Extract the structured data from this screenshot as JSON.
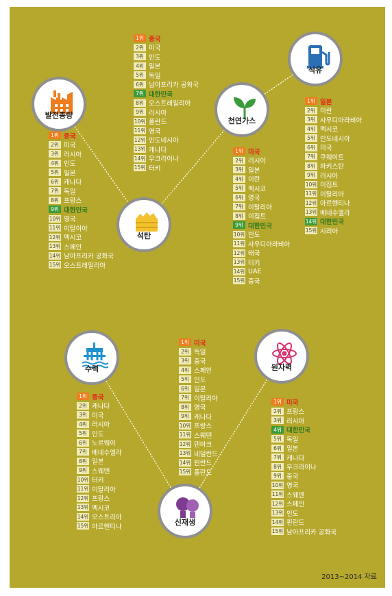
{
  "categories": [
    {
      "id": "power",
      "label": "발전총량",
      "icon": "factory-icon",
      "items": [
        "중국",
        "미국",
        "러시아",
        "인도",
        "일본",
        "캐나다",
        "독일",
        "프랑스",
        "대한민국",
        "영국",
        "이탈이아",
        "멕시코",
        "스페인",
        "남아프리카 공화국",
        "오스트레일리아"
      ]
    },
    {
      "id": "coal",
      "label": "석탄",
      "icon": "coal-cart-icon",
      "items": [
        "중국",
        "미국",
        "인도",
        "일본",
        "독일",
        "남아프리카 공화국",
        "대한민국",
        "오스트레일리아",
        "러시아",
        "폴란드",
        "영국",
        "인도네시아",
        "캐나다",
        "우크라이나",
        "터키"
      ]
    },
    {
      "id": "gas",
      "label": "천연가스",
      "icon": "sprout-icon",
      "items": [
        "미국",
        "러시아",
        "일본",
        "이란",
        "멕시코",
        "영국",
        "이탈리아",
        "이집트",
        "대한민국",
        "인도",
        "사우디아라비아",
        "태국",
        "터키",
        "UAE",
        "중국"
      ]
    },
    {
      "id": "oil",
      "label": "석유",
      "icon": "fuel-pump-icon",
      "items": [
        "일본",
        "이란",
        "사우디아라비아",
        "멕시코",
        "인도네시아",
        "미국",
        "쿠웨이트",
        "파키스탄",
        "러시아",
        "이집트",
        "이탈리아",
        "아르헨티나",
        "베네수엘라",
        "대한민국",
        "시리아"
      ]
    },
    {
      "id": "hydro",
      "label": "수력",
      "icon": "dam-icon",
      "items": [
        "중국",
        "캐나다",
        "미국",
        "러시아",
        "인도",
        "노르웨이",
        "베네수엘라",
        "일본",
        "스웨덴",
        "터키",
        "이탈리아",
        "프랑스",
        "멕시코",
        "오스트리아",
        "아르헨티나"
      ]
    },
    {
      "id": "renew",
      "label": "신재생",
      "icon": "lightbulb-icon",
      "items": [
        "미국",
        "독일",
        "중국",
        "스페인",
        "인도",
        "일본",
        "이탈리아",
        "영국",
        "캐나다",
        "프랑스",
        "스웨덴",
        "덴마크",
        "네덜란드",
        "핀란드",
        "폴란드"
      ]
    },
    {
      "id": "nuclear",
      "label": "원자력",
      "icon": "atom-icon",
      "items": [
        "미국",
        "프랑스",
        "러시아",
        "대한민국",
        "독일",
        "일본",
        "캐나다",
        "우크라이나",
        "중국",
        "영국",
        "스웨덴",
        "스페인",
        "인도",
        "핀란드",
        "남아프리카 공화국"
      ]
    }
  ],
  "rank_suffix": "위",
  "korea_name": "대한민국",
  "source_note": "2013∼2014 자료",
  "colors": {
    "background": "#b5a82c",
    "first_badge": "#ee7d1f",
    "first_text": "#e8261a",
    "korea_badge": "#3b9b3a",
    "korea_text": "#2f7a21"
  }
}
